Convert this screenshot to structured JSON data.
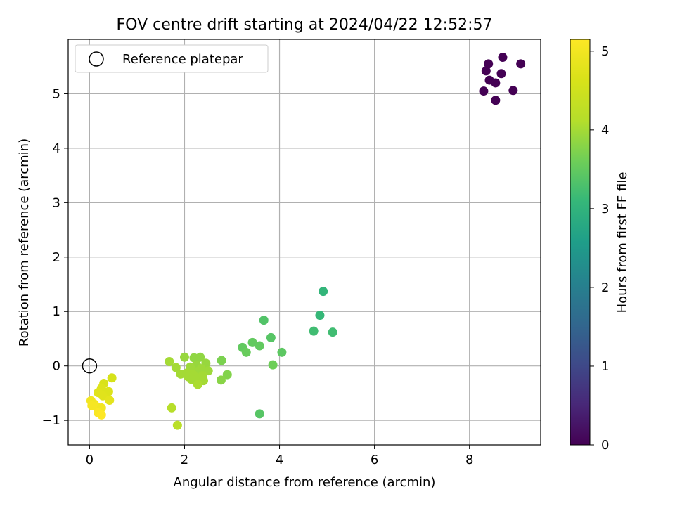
{
  "chart_data": {
    "type": "scatter",
    "title": "FOV centre drift starting at 2024/04/22 12:52:57",
    "xlabel": "Angular distance from reference (arcmin)",
    "ylabel": "Rotation from reference (arcmin)",
    "xlim": [
      -0.45,
      9.5
    ],
    "ylim": [
      -1.45,
      6.0
    ],
    "xticks": [
      0,
      2,
      4,
      6,
      8
    ],
    "yticks": [
      -1,
      0,
      1,
      2,
      3,
      4,
      5
    ],
    "grid": true,
    "legend": {
      "position": "top-left",
      "entries": [
        "Reference platepar"
      ]
    },
    "reference_point": {
      "label": "Reference platepar",
      "x": 0,
      "y": 0,
      "marker": "open-circle"
    },
    "colorbar": {
      "label": "Hours from first FF file",
      "colormap": "viridis",
      "range": [
        0,
        5.15
      ],
      "ticks": [
        0,
        1,
        2,
        3,
        4,
        5
      ]
    },
    "points": [
      {
        "x": 8.4,
        "y": 5.55,
        "h": 0.0
      },
      {
        "x": 8.7,
        "y": 5.67,
        "h": 0.0
      },
      {
        "x": 9.08,
        "y": 5.55,
        "h": 0.0
      },
      {
        "x": 8.35,
        "y": 5.42,
        "h": 0.0
      },
      {
        "x": 8.67,
        "y": 5.37,
        "h": 0.0
      },
      {
        "x": 8.42,
        "y": 5.25,
        "h": 0.0
      },
      {
        "x": 8.55,
        "y": 5.2,
        "h": 0.0
      },
      {
        "x": 8.3,
        "y": 5.05,
        "h": 0.0
      },
      {
        "x": 8.92,
        "y": 5.06,
        "h": 0.0
      },
      {
        "x": 8.55,
        "y": 4.88,
        "h": 0.0
      },
      {
        "x": 4.92,
        "y": 1.37,
        "h": 3.05
      },
      {
        "x": 4.85,
        "y": 0.93,
        "h": 3.1
      },
      {
        "x": 4.72,
        "y": 0.64,
        "h": 3.2
      },
      {
        "x": 5.12,
        "y": 0.62,
        "h": 3.2
      },
      {
        "x": 3.67,
        "y": 0.84,
        "h": 3.35
      },
      {
        "x": 3.82,
        "y": 0.52,
        "h": 3.4
      },
      {
        "x": 3.22,
        "y": 0.34,
        "h": 3.5
      },
      {
        "x": 3.43,
        "y": 0.43,
        "h": 3.5
      },
      {
        "x": 3.58,
        "y": 0.37,
        "h": 3.5
      },
      {
        "x": 3.3,
        "y": 0.25,
        "h": 3.55
      },
      {
        "x": 4.05,
        "y": 0.25,
        "h": 3.45
      },
      {
        "x": 3.86,
        "y": 0.02,
        "h": 3.6
      },
      {
        "x": 3.58,
        "y": -0.88,
        "h": 3.4
      },
      {
        "x": 2.78,
        "y": 0.1,
        "h": 3.7
      },
      {
        "x": 2.9,
        "y": -0.16,
        "h": 3.75
      },
      {
        "x": 2.77,
        "y": -0.26,
        "h": 3.8
      },
      {
        "x": 2.0,
        "y": 0.16,
        "h": 3.9
      },
      {
        "x": 2.2,
        "y": 0.15,
        "h": 3.85
      },
      {
        "x": 2.33,
        "y": 0.16,
        "h": 3.85
      },
      {
        "x": 2.45,
        "y": 0.05,
        "h": 3.9
      },
      {
        "x": 2.25,
        "y": 0.02,
        "h": 3.9
      },
      {
        "x": 2.12,
        "y": -0.02,
        "h": 3.95
      },
      {
        "x": 2.35,
        "y": -0.05,
        "h": 3.95
      },
      {
        "x": 2.5,
        "y": -0.09,
        "h": 3.95
      },
      {
        "x": 2.28,
        "y": -0.1,
        "h": 3.95
      },
      {
        "x": 2.05,
        "y": -0.13,
        "h": 4.0
      },
      {
        "x": 2.18,
        "y": -0.16,
        "h": 4.0
      },
      {
        "x": 2.38,
        "y": -0.18,
        "h": 4.0
      },
      {
        "x": 2.08,
        "y": -0.2,
        "h": 4.0
      },
      {
        "x": 2.22,
        "y": -0.24,
        "h": 4.0
      },
      {
        "x": 2.15,
        "y": -0.25,
        "h": 4.0
      },
      {
        "x": 2.4,
        "y": -0.27,
        "h": 4.0
      },
      {
        "x": 2.28,
        "y": -0.34,
        "h": 4.05
      },
      {
        "x": 1.92,
        "y": -0.15,
        "h": 4.0
      },
      {
        "x": 1.82,
        "y": -0.03,
        "h": 4.0
      },
      {
        "x": 1.68,
        "y": 0.08,
        "h": 4.0
      },
      {
        "x": 1.73,
        "y": -0.77,
        "h": 4.15
      },
      {
        "x": 1.85,
        "y": -1.09,
        "h": 4.2
      },
      {
        "x": 0.47,
        "y": -0.22,
        "h": 4.6
      },
      {
        "x": 0.3,
        "y": -0.32,
        "h": 4.65
      },
      {
        "x": 0.4,
        "y": -0.47,
        "h": 4.7
      },
      {
        "x": 0.25,
        "y": -0.41,
        "h": 4.7
      },
      {
        "x": 0.18,
        "y": -0.49,
        "h": 4.75
      },
      {
        "x": 0.28,
        "y": -0.55,
        "h": 4.75
      },
      {
        "x": 0.42,
        "y": -0.63,
        "h": 4.8
      },
      {
        "x": 0.03,
        "y": -0.64,
        "h": 5.0
      },
      {
        "x": 0.1,
        "y": -0.7,
        "h": 5.0
      },
      {
        "x": 0.05,
        "y": -0.73,
        "h": 5.05
      },
      {
        "x": 0.15,
        "y": -0.75,
        "h": 5.05
      },
      {
        "x": 0.25,
        "y": -0.77,
        "h": 5.0
      },
      {
        "x": 0.18,
        "y": -0.86,
        "h": 5.1
      },
      {
        "x": 0.25,
        "y": -0.9,
        "h": 5.15
      }
    ]
  }
}
